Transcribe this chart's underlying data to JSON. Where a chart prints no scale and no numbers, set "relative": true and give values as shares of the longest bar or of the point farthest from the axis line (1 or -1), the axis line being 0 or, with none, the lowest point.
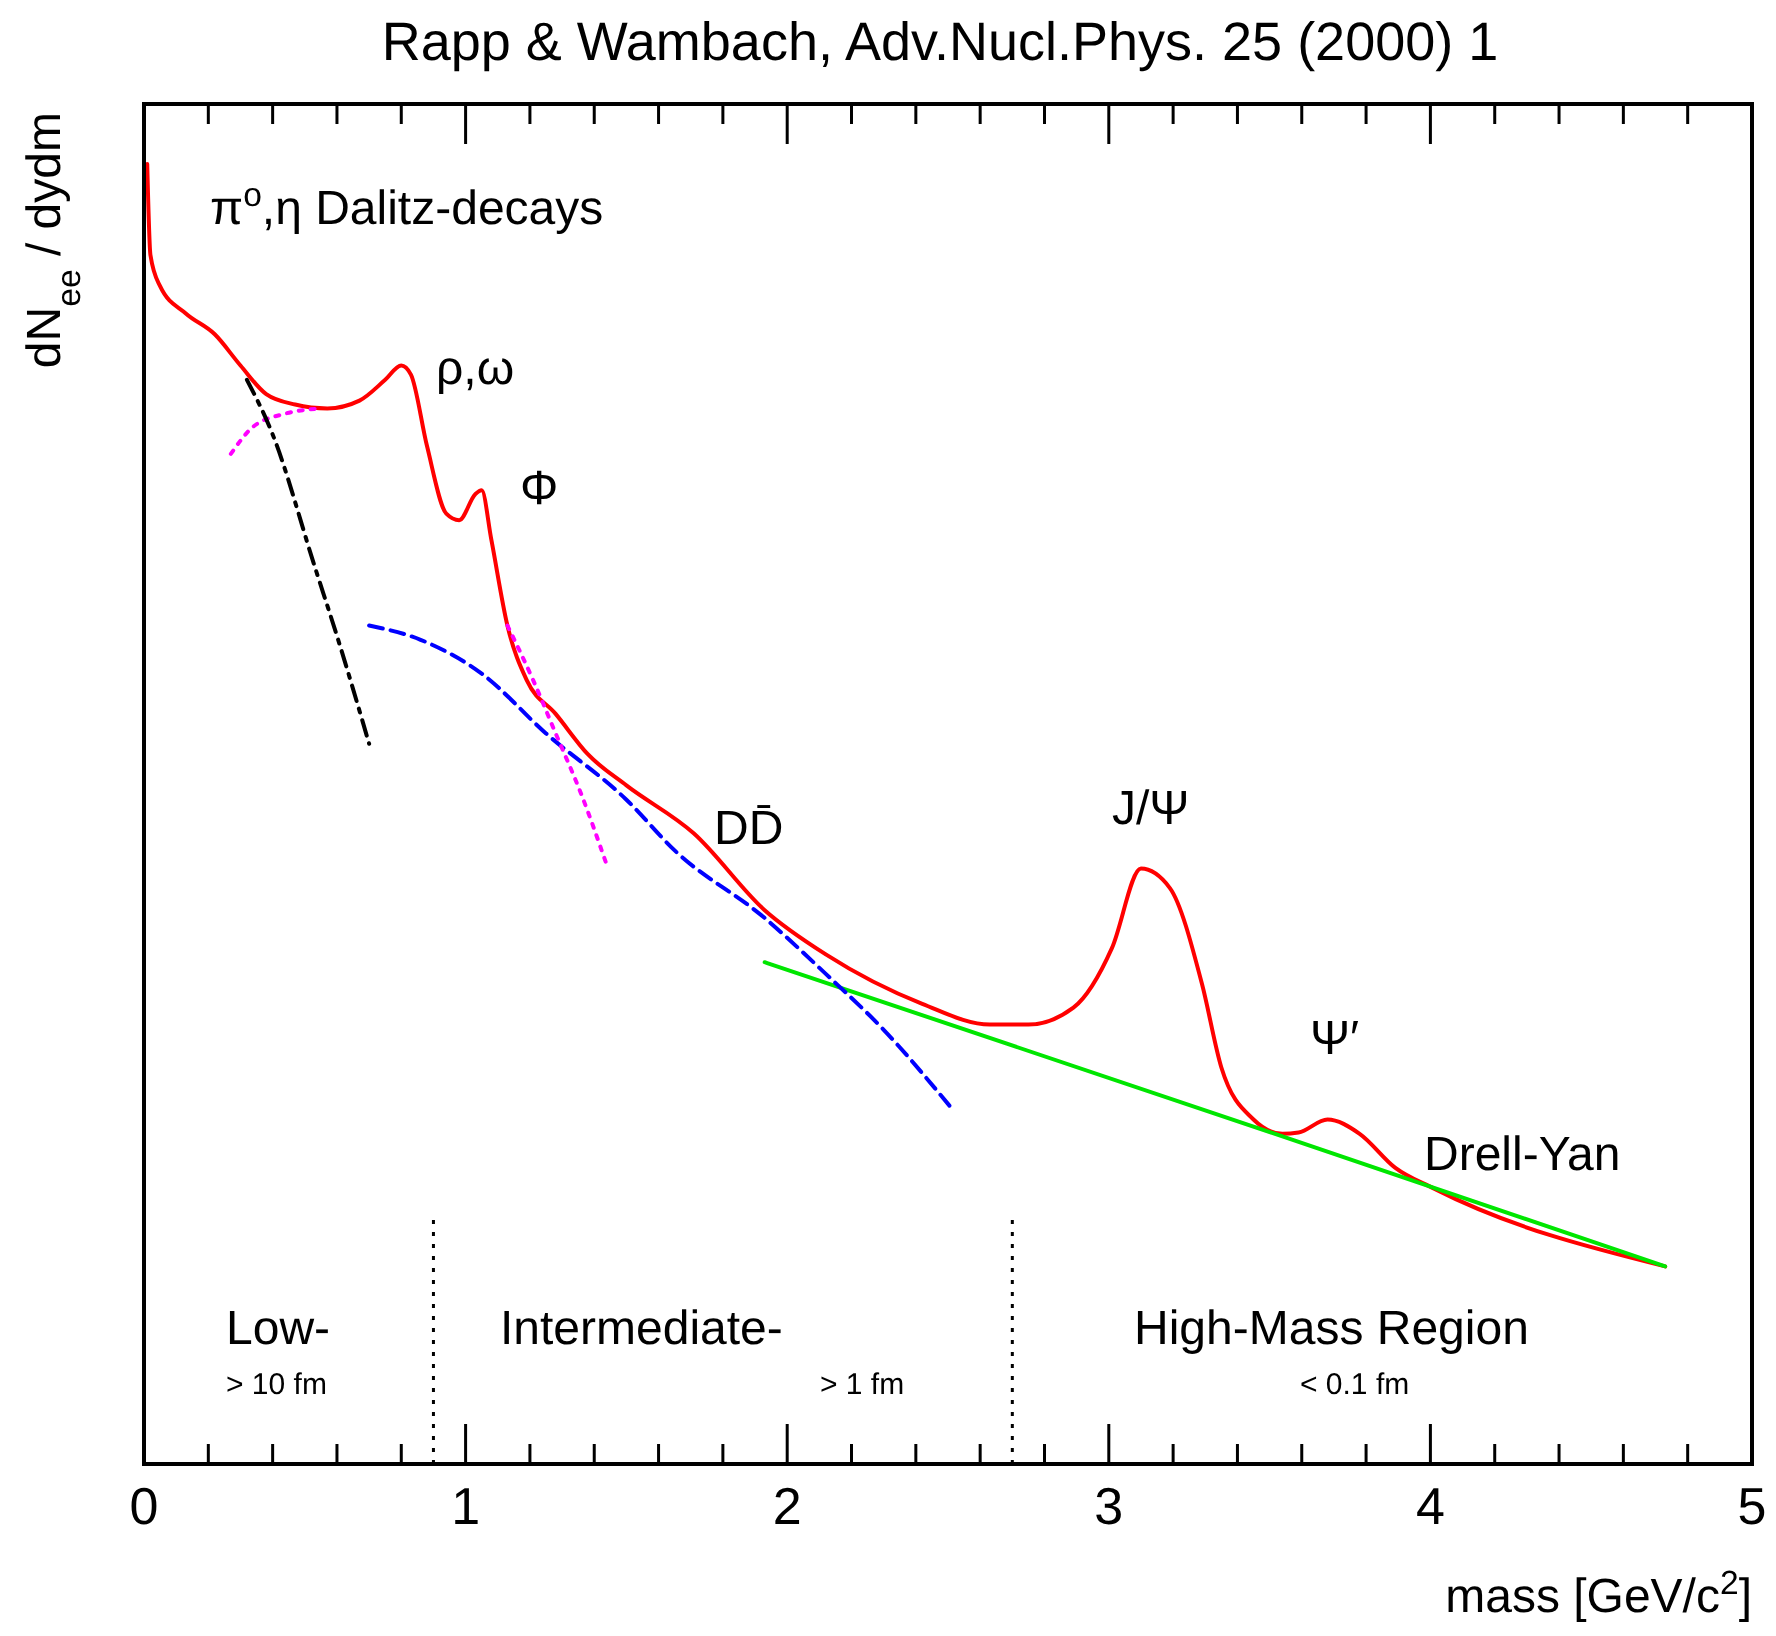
{
  "chart_data": {
    "type": "line",
    "relative": true,
    "title": "Rapp & Wambach, Adv.Nucl.Phys. 25 (2000) 1",
    "xlabel": "mass [GeV/c$^{2}$]",
    "ylabel": "dN$_{ee}$ / dydm",
    "xlim": [
      0,
      5
    ],
    "xticks": [
      0,
      {
        "value": 0.2,
        "label": null
      },
      {
        "value": 0.4,
        "label": null
      },
      {
        "value": 0.6,
        "label": null
      },
      {
        "value": 0.8,
        "label": null
      },
      1,
      {
        "value": 1.2,
        "label": null
      },
      {
        "value": 1.4,
        "label": null
      },
      {
        "value": 1.6,
        "label": null
      },
      {
        "value": 1.8,
        "label": null
      },
      2,
      {
        "value": 2.2,
        "label": null
      },
      {
        "value": 2.4,
        "label": null
      },
      {
        "value": 2.6,
        "label": null
      },
      {
        "value": 2.8,
        "label": null
      },
      3,
      {
        "value": 3.2,
        "label": null
      },
      {
        "value": 3.4,
        "label": null
      },
      {
        "value": 3.6,
        "label": null
      },
      {
        "value": 3.8,
        "label": null
      },
      4,
      {
        "value": 4.2,
        "label": null
      },
      {
        "value": 4.4,
        "label": null
      },
      {
        "value": 4.6,
        "label": null
      },
      {
        "value": 4.8,
        "label": null
      },
      5
    ],
    "grid": false,
    "series": [
      {
        "color": "#ff0000",
        "line_style": "solid",
        "x": [
          0.01,
          0.02,
          0.05,
          0.13,
          0.22,
          0.3,
          0.38,
          0.47,
          0.57,
          0.67,
          0.75,
          0.8,
          0.83,
          0.88,
          0.94,
          0.98,
          1.03,
          1.05,
          1.08,
          1.13,
          1.19,
          1.28,
          1.38,
          1.5,
          1.71,
          1.93,
          2.12,
          2.42,
          2.63,
          2.75,
          2.89,
          3.01,
          3.1,
          3.19,
          3.29,
          3.35,
          3.45,
          3.54,
          3.59,
          3.68,
          3.78,
          3.89,
          4.01,
          4.73
        ],
        "values": [
          1.0,
          0.93,
          0.906,
          0.885,
          0.869,
          0.845,
          0.823,
          0.815,
          0.812,
          0.818,
          0.834,
          0.845,
          0.838,
          0.783,
          0.731,
          0.726,
          0.746,
          0.749,
          0.711,
          0.645,
          0.603,
          0.577,
          0.546,
          0.522,
          0.485,
          0.426,
          0.392,
          0.354,
          0.338,
          0.338,
          0.351,
          0.397,
          0.458,
          0.443,
          0.369,
          0.305,
          0.265,
          0.254,
          0.255,
          0.265,
          0.254,
          0.228,
          0.212,
          0.152
        ]
      },
      {
        "color": "#00e600",
        "line_style": "solid",
        "x": [
          1.93,
          3.54,
          4.73
        ],
        "values": [
          0.386,
          0.252,
          0.152
        ]
      },
      {
        "color": "#0000ff",
        "line_style": "dashed",
        "x": [
          0.7,
          0.86,
          1.05,
          1.25,
          1.5,
          1.65,
          1.93,
          2.12,
          2.3,
          2.51
        ],
        "values": [
          0.645,
          0.634,
          0.608,
          0.562,
          0.511,
          0.472,
          0.42,
          0.377,
          0.334,
          0.274
        ]
      },
      {
        "color": "#ff00ff",
        "line_style": "dotted",
        "x": [
          0.27,
          0.34,
          0.44,
          0.55
        ],
        "values": [
          0.777,
          0.798,
          0.808,
          0.812
        ]
      },
      {
        "color": "#ff00ff",
        "line_style": "dotted",
        "x": [
          1.13,
          1.21,
          1.28,
          1.36,
          1.44
        ],
        "values": [
          0.645,
          0.603,
          0.562,
          0.515,
          0.46
        ]
      },
      {
        "color": "#000000",
        "line_style": "dashdot",
        "x": [
          0.32,
          0.4,
          0.53,
          0.61,
          0.7
        ],
        "values": [
          0.834,
          0.792,
          0.691,
          0.629,
          0.554
        ]
      }
    ],
    "ref_lines": [
      {
        "axis": "x",
        "value": 0.9,
        "line_style": "dotted",
        "color": "#000000"
      },
      {
        "axis": "x",
        "value": 2.7,
        "line_style": "dotted",
        "color": "#000000"
      }
    ],
    "annotations": [
      "π$^{o}$,η Dalitz-decays",
      "Low-",
      "> 10 fm",
      "Intermediate-",
      "> 1 fm",
      "High-Mass Region",
      "< 0.1 fm",
      "ρ,ω",
      "Φ",
      "DD̄",
      "J/Ψ",
      "Ψ′",
      "Drell-Yan"
    ]
  }
}
